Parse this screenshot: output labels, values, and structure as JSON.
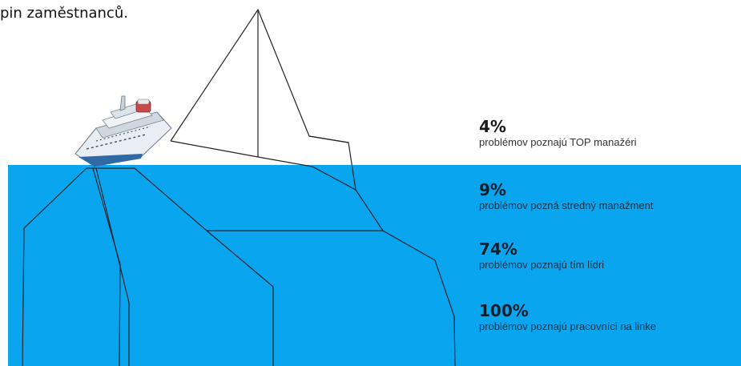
{
  "caption": "pin zaměstnanců.",
  "colors": {
    "water": "#0aa5ef",
    "outline": "#1a1a1a"
  },
  "stats": [
    {
      "value": "4%",
      "label": "problémov poznajú TOP manažéri"
    },
    {
      "value": "9%",
      "label": "problémov pozná stredný manažment"
    },
    {
      "value": "74%",
      "label": "problémov poznajú tím lídri"
    },
    {
      "value": "100%",
      "label": "problémov poznajú pracovníci na linke"
    }
  ],
  "ship_icon": "cruise-ship-icon"
}
